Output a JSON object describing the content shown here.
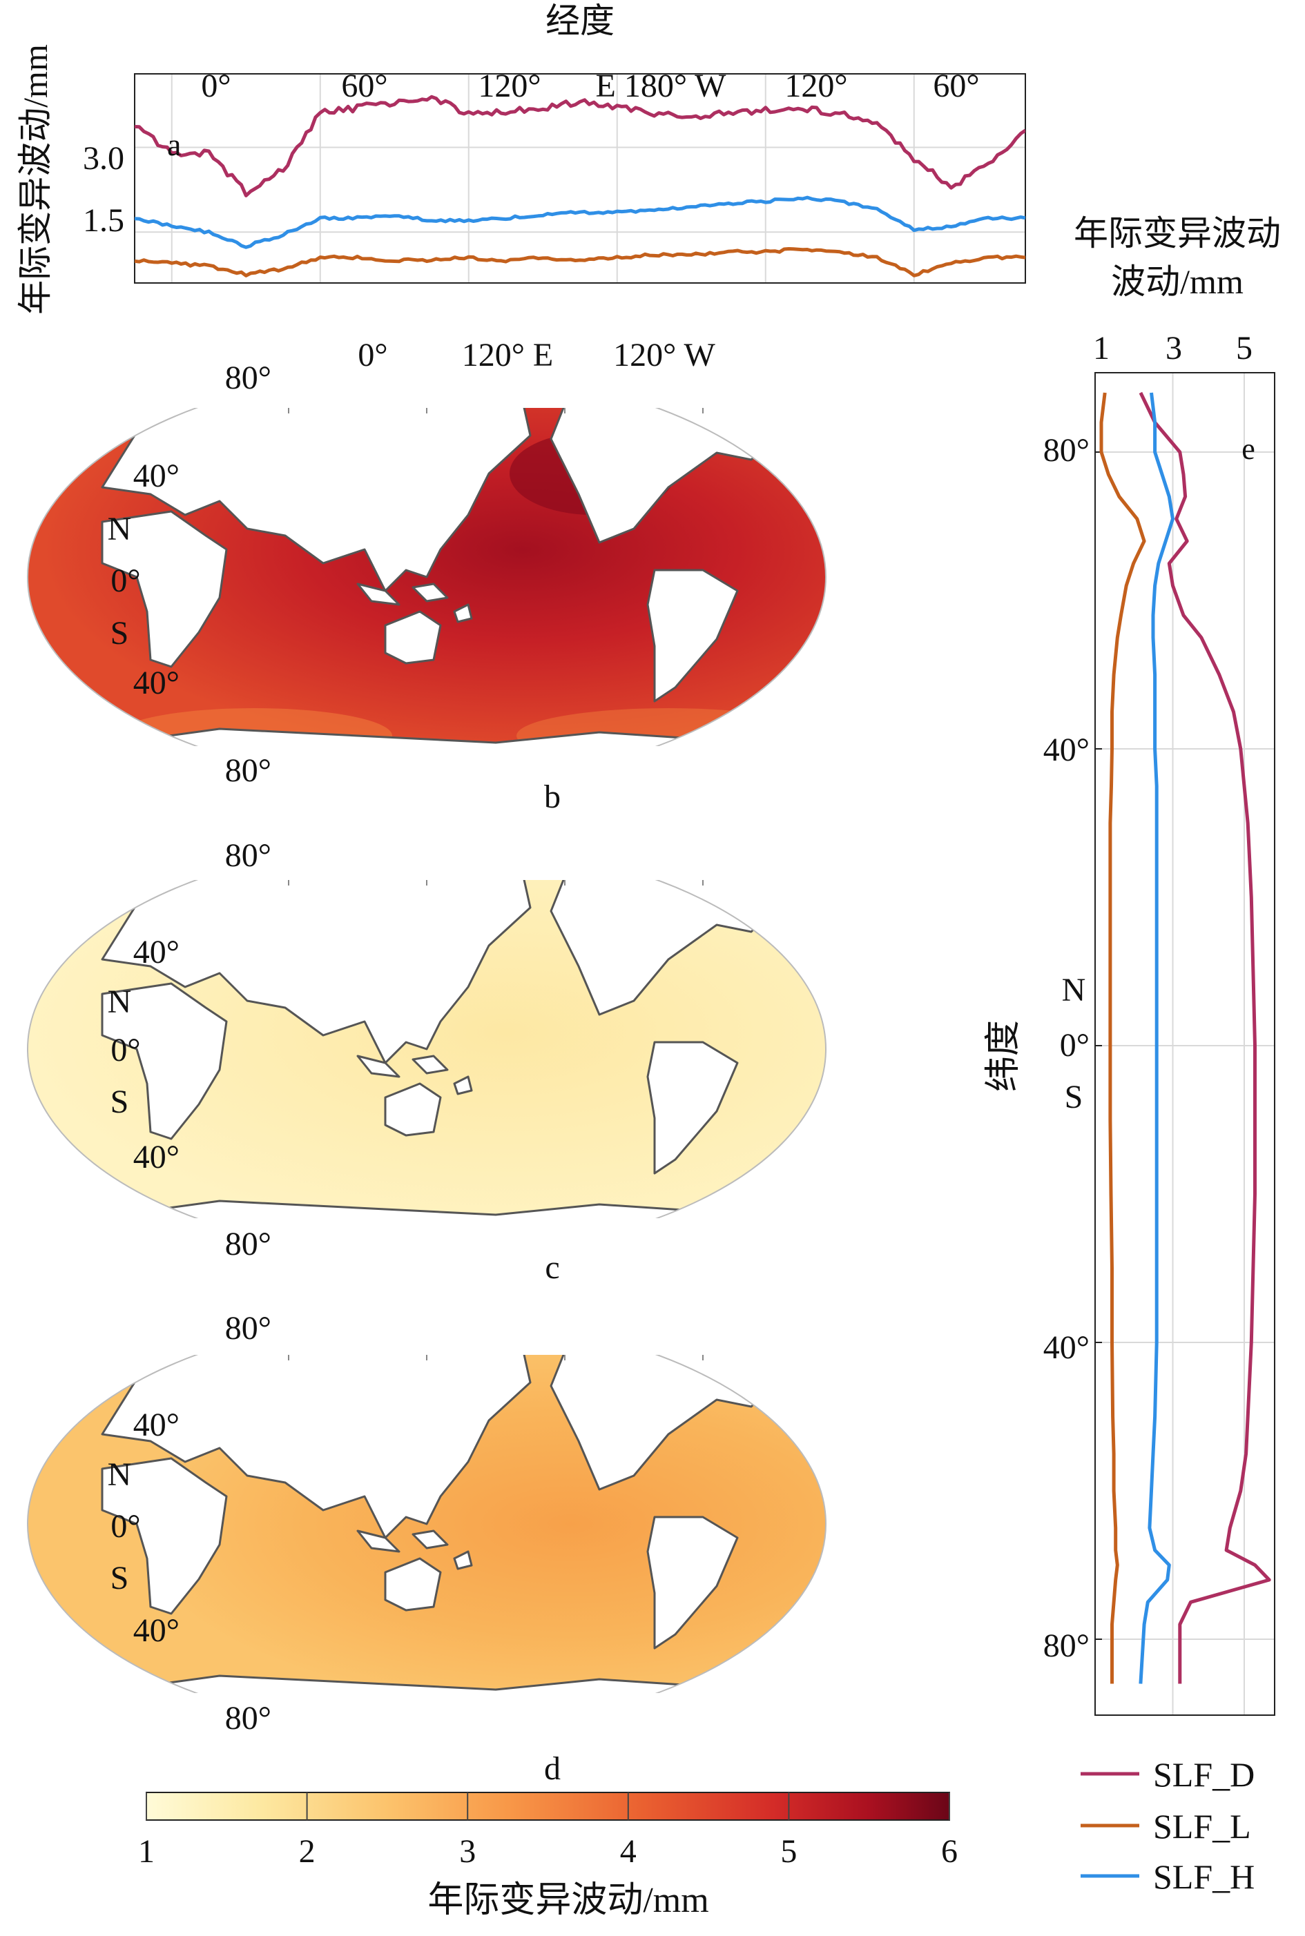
{
  "colors": {
    "SLF_D": "#ad2f60",
    "SLF_L": "#c4601c",
    "SLF_H": "#2f8fe6",
    "colormap": [
      "#fffbd8",
      "#fde9a2",
      "#fcc36c",
      "#f89848",
      "#ea6030",
      "#d42c28",
      "#aa1020",
      "#6b0618"
    ],
    "land": "#ffffff",
    "coast": "#555555"
  },
  "panel_a": {
    "label": "a",
    "xaxis_title": "经度",
    "yaxis_title": "年际变异波动/mm",
    "x_ticks": [
      "0°",
      "60°",
      "120°",
      "E 180° W",
      "120°",
      "60°"
    ],
    "y_ticks": [
      "3.0",
      "1.5"
    ]
  },
  "panel_b": {
    "label": "b",
    "lon_labels": [
      "0°",
      "120° E",
      "120° W"
    ],
    "lat_labels": [
      "80°",
      "40°",
      "N",
      "0°",
      "S",
      "40°",
      "80°"
    ]
  },
  "panel_c": {
    "label": "c",
    "lat_labels": [
      "80°",
      "40°",
      "N",
      "0°",
      "S",
      "40°",
      "80°"
    ]
  },
  "panel_d": {
    "label": "d",
    "lat_labels": [
      "80°",
      "40°",
      "N",
      "0°",
      "S",
      "40°",
      "80°"
    ]
  },
  "panel_e": {
    "label": "e",
    "title_line1": "年际变异波动",
    "title_line2": "波动/mm",
    "x_ticks": [
      "1",
      "3",
      "5"
    ],
    "ylabel": "纬度",
    "y_ticks": [
      "80°",
      "40°",
      "0°",
      "40°",
      "80°"
    ],
    "hemi_n": "N",
    "hemi_s": "S"
  },
  "colorbar": {
    "ticks": [
      "1",
      "2",
      "3",
      "4",
      "5",
      "6"
    ],
    "label": "年际变异波动/mm"
  },
  "legend": [
    "SLF_D",
    "SLF_L",
    "SLF_H"
  ],
  "chart_data": [
    {
      "type": "line",
      "panel": "a",
      "x": [
        -15,
        0,
        15,
        30,
        45,
        60,
        75,
        90,
        105,
        120,
        135,
        150,
        165,
        180,
        195,
        210,
        225,
        240,
        255,
        270,
        285,
        300,
        315,
        330,
        345
      ],
      "xlim": [
        -15,
        345
      ],
      "ylim": [
        0.6,
        4.3
      ],
      "series": [
        {
          "name": "SLF_D",
          "values": [
            3.4,
            2.9,
            2.9,
            2.2,
            2.6,
            3.6,
            3.7,
            3.8,
            3.9,
            3.6,
            3.65,
            3.7,
            3.8,
            3.7,
            3.6,
            3.55,
            3.6,
            3.65,
            3.7,
            3.6,
            3.4,
            2.8,
            2.3,
            2.7,
            3.3
          ]
        },
        {
          "name": "SLF_L",
          "values": [
            1.0,
            0.95,
            0.9,
            0.75,
            0.85,
            1.05,
            1.05,
            1.0,
            1.0,
            1.05,
            1.0,
            1.05,
            1.0,
            1.05,
            1.1,
            1.1,
            1.15,
            1.15,
            1.2,
            1.15,
            1.05,
            0.75,
            0.95,
            1.05,
            1.05
          ]
        },
        {
          "name": "SLF_H",
          "values": [
            1.75,
            1.6,
            1.5,
            1.25,
            1.45,
            1.75,
            1.75,
            1.8,
            1.7,
            1.7,
            1.75,
            1.8,
            1.85,
            1.85,
            1.9,
            1.95,
            2.0,
            2.05,
            2.1,
            2.05,
            1.9,
            1.55,
            1.6,
            1.75,
            1.75
          ]
        }
      ]
    },
    {
      "type": "heatmap",
      "panel": "b",
      "description_values": {
        "colorbar_range": [
          1,
          6
        ]
      },
      "ocean_level_range": [
        4.2,
        6.0
      ]
    },
    {
      "type": "heatmap",
      "panel": "c",
      "ocean_level_range": [
        1.1,
        1.8
      ]
    },
    {
      "type": "heatmap",
      "panel": "d",
      "ocean_level_range": [
        2.2,
        3.3
      ]
    },
    {
      "type": "line",
      "panel": "e",
      "y": [
        88,
        84,
        80,
        77,
        74,
        71,
        68,
        65,
        62,
        58,
        55,
        50,
        45,
        40,
        35,
        30,
        20,
        10,
        0,
        -10,
        -20,
        -30,
        -40,
        -50,
        -55,
        -60,
        -65,
        -68,
        -70,
        -72,
        -75,
        -78,
        -82,
        -86
      ],
      "ylim": [
        -90,
        90
      ],
      "xlim": [
        1,
        6
      ],
      "series": [
        {
          "name": "SLF_D",
          "values": [
            2.1,
            2.5,
            3.2,
            3.3,
            3.35,
            3.1,
            3.4,
            2.9,
            3.0,
            3.3,
            3.8,
            4.3,
            4.7,
            4.9,
            5.0,
            5.1,
            5.2,
            5.25,
            5.3,
            5.3,
            5.3,
            5.25,
            5.2,
            5.1,
            5.05,
            4.9,
            4.6,
            4.5,
            5.3,
            5.7,
            3.5,
            3.2,
            3.2,
            3.2
          ]
        },
        {
          "name": "SLF_L",
          "values": [
            1.1,
            1.0,
            1.0,
            1.2,
            1.5,
            2.0,
            2.2,
            1.9,
            1.7,
            1.55,
            1.45,
            1.35,
            1.3,
            1.3,
            1.28,
            1.25,
            1.25,
            1.25,
            1.25,
            1.25,
            1.27,
            1.3,
            1.3,
            1.32,
            1.35,
            1.35,
            1.4,
            1.4,
            1.45,
            1.4,
            1.35,
            1.3,
            1.3,
            1.3
          ]
        },
        {
          "name": "SLF_H",
          "values": [
            2.4,
            2.5,
            2.5,
            2.7,
            2.9,
            3.0,
            2.8,
            2.6,
            2.5,
            2.45,
            2.45,
            2.5,
            2.5,
            2.5,
            2.55,
            2.55,
            2.55,
            2.55,
            2.55,
            2.55,
            2.55,
            2.55,
            2.55,
            2.5,
            2.45,
            2.4,
            2.35,
            2.5,
            2.9,
            2.85,
            2.3,
            2.2,
            2.15,
            2.1
          ]
        }
      ]
    }
  ]
}
